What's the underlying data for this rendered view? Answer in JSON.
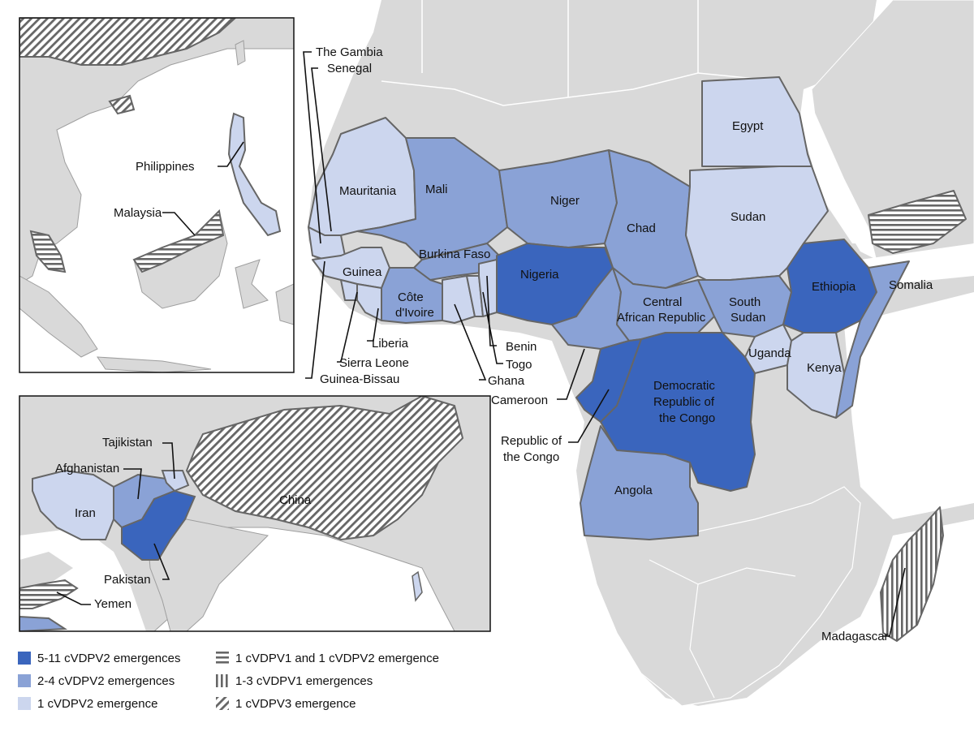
{
  "colors": {
    "ocean": "#ffffff",
    "land": "#d9d9d9",
    "border": "#9e9e9e",
    "dark": "#3a65bd",
    "medium": "#8aa2d6",
    "light": "#ccd6ee",
    "outline": "#666666"
  },
  "labels": {
    "the_gambia": "The Gambia",
    "senegal": "Senegal",
    "mauritania": "Mauritania",
    "mali": "Mali",
    "niger": "Niger",
    "chad": "Chad",
    "sudan": "Sudan",
    "egypt": "Egypt",
    "burkina_faso": "Burkina Faso",
    "guinea": "Guinea",
    "cote_divoire_1": "Côte",
    "cote_divoire_2": "d'Ivoire",
    "nigeria": "Nigeria",
    "central_african_1": "Central",
    "central_african_2": "African Republic",
    "south_sudan_1": "South",
    "south_sudan_2": "Sudan",
    "ethiopia": "Ethiopia",
    "somalia": "Somalia",
    "liberia": "Liberia",
    "sierra_leone": "Sierra Leone",
    "guinea_bissau": "Guinea-Bissau",
    "benin": "Benin",
    "togo": "Togo",
    "ghana": "Ghana",
    "cameroon": "Cameroon",
    "uganda": "Uganda",
    "kenya": "Kenya",
    "drc_1": "Democratic",
    "drc_2": "Republic of",
    "drc_3": "the Congo",
    "roc_1": "Republic of",
    "roc_2": "the Congo",
    "angola": "Angola",
    "madagascar": "Madagascar",
    "philippines": "Philippines",
    "malaysia": "Malaysia",
    "tajikistan": "Tajikistan",
    "afghanistan": "Afghanistan",
    "iran": "Iran",
    "china": "China",
    "pakistan": "Pakistan",
    "yemen": "Yemen"
  },
  "legend": {
    "dark_label": "5-11 cVDPV2 emergences",
    "medium_label": "2-4 cVDPV2 emergences",
    "light_label": "1 cVDPV2 emergence",
    "hstripe_label": "1 cVDPV1 and 1 cVDPV2 emergence",
    "vstripe_label": "1-3 cVDPV1 emergences",
    "diag_label": "1 cVDPV3 emergence"
  }
}
